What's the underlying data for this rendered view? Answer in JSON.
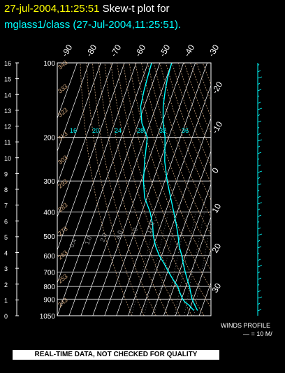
{
  "header": {
    "date_stamp": "27-jul-2004,11:25:51",
    "title_text": "Skew-t plot for",
    "subtitle": "mglass1/class (27-Jul-2004,11:25:51)."
  },
  "footer": {
    "disclaimer": "REAL-TIME DATA, NOT CHECKED FOR QUALITY"
  },
  "winds_profile": {
    "label": "WINDS PROFILE",
    "scale": "— = 10 M/"
  },
  "colors": {
    "background": "#000000",
    "sounding": "#00ffff",
    "grid": "#ffffff",
    "adiabat": "#c8a078",
    "date": "#ffff00"
  },
  "chart_data": {
    "type": "line",
    "pressure_ticks": [
      100,
      200,
      300,
      400,
      500,
      600,
      700,
      800,
      900,
      1050
    ],
    "height_ticks": [
      16,
      15,
      14,
      13,
      12,
      11,
      10,
      9,
      8,
      7,
      6,
      5,
      4,
      3,
      2,
      1,
      0
    ],
    "temp_ticks_top": [
      "-90",
      "-80",
      "-70",
      "-60",
      "-50",
      "-40",
      "-30"
    ],
    "temp_ticks_right": [
      "-20",
      "-10",
      "0",
      "10",
      "20",
      "30"
    ],
    "dry_adiabat_labels": [
      "343",
      "333",
      "323",
      "313",
      "303",
      "293",
      "283",
      "273",
      "263",
      "253",
      "243"
    ],
    "mixing_ratio_labels": [
      "0.4",
      "1.0",
      "2.0",
      "4.0",
      "7.0",
      "12.0"
    ],
    "moist_adiabat_labels": [
      "16",
      "20",
      "24",
      "28",
      "32",
      "36"
    ],
    "series": [
      {
        "pressure": [
          1000,
          975,
          950,
          925,
          900,
          850,
          800,
          750,
          700,
          650,
          600,
          550,
          500,
          450,
          400,
          350,
          300,
          250,
          200,
          175,
          150,
          130,
          115,
          100
        ],
        "values": [
          27,
          25,
          23,
          21,
          19,
          16,
          13,
          9,
          5,
          1,
          -3,
          -8,
          -12,
          -17,
          -23,
          -30,
          -38,
          -46,
          -53,
          -59,
          -64,
          -67,
          -69,
          -70
        ]
      },
      {
        "pressure": [
          1000,
          975,
          950,
          925,
          900,
          850,
          800,
          750,
          700,
          650,
          600,
          550,
          500,
          450,
          400,
          350,
          300,
          250,
          200,
          175,
          150,
          130,
          115,
          100
        ],
        "values": [
          24,
          21,
          18,
          14,
          11,
          7,
          3,
          -3,
          -9,
          -15,
          -22,
          -28,
          -33,
          -37,
          -43,
          -52,
          -58,
          -63,
          -68,
          -77,
          -83,
          -85,
          -86,
          -87
        ]
      }
    ],
    "xlim": [
      -90,
      40
    ],
    "ylim": [
      1050,
      100
    ],
    "scale": "log-pressure"
  }
}
